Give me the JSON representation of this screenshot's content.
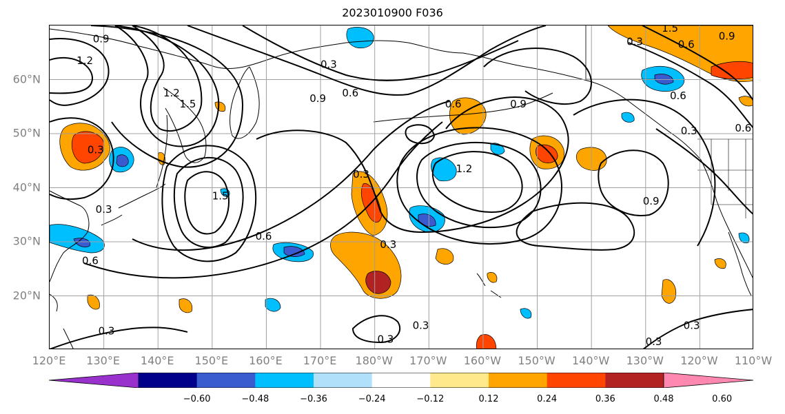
{
  "title": "2023010900 F036",
  "lat_labels": [
    {
      "lat": 60,
      "text": "60°N"
    },
    {
      "lat": 50,
      "text": "50°N"
    },
    {
      "lat": 40,
      "text": "40°N"
    },
    {
      "lat": 30,
      "text": "30°N"
    },
    {
      "lat": 20,
      "text": "20°N"
    }
  ],
  "lon_labels": [
    {
      "lon": 120,
      "text": "120°E"
    },
    {
      "lon": 130,
      "text": "130°E"
    },
    {
      "lon": 140,
      "text": "140°E"
    },
    {
      "lon": 150,
      "text": "150°E"
    },
    {
      "lon": 160,
      "text": "160°E"
    },
    {
      "lon": 170,
      "text": "170°E"
    },
    {
      "lon": 180,
      "text": "180°W"
    },
    {
      "lon": 190,
      "text": "170°W"
    },
    {
      "lon": 200,
      "text": "160°W"
    },
    {
      "lon": 210,
      "text": "150°W"
    },
    {
      "lon": 220,
      "text": "140°W"
    },
    {
      "lon": 230,
      "text": "130°W"
    },
    {
      "lon": 240,
      "text": "120°W"
    },
    {
      "lon": 250,
      "text": "110°W"
    }
  ],
  "extent": {
    "lon_min": 120,
    "lon_max": 250,
    "lat_min": 10,
    "lat_max": 70
  },
  "colorbar": {
    "colors": [
      "#9932cc",
      "#00008b",
      "#3a5bd0",
      "#00bfff",
      "#b0e0fa",
      "#ffffff",
      "#ffe98a",
      "#ffa500",
      "#ff4500",
      "#b22222",
      "#ff88b0"
    ],
    "ticks": [
      "−0.60",
      "−0.48",
      "−0.36",
      "−0.24",
      "−0.12",
      "0.12",
      "0.24",
      "0.36",
      "0.48",
      "0.60"
    ]
  },
  "contour_labels": [
    {
      "text": "0.9",
      "lon": 129.5,
      "lat": 67.5
    },
    {
      "text": "1.2",
      "lon": 126.5,
      "lat": 63.5
    },
    {
      "text": "1.5",
      "lon": 145.5,
      "lat": 55.5
    },
    {
      "text": "1.2",
      "lon": 142.5,
      "lat": 57.5
    },
    {
      "text": "0.3",
      "lon": 171.5,
      "lat": 62.8
    },
    {
      "text": "0.9",
      "lon": 169.5,
      "lat": 56.5
    },
    {
      "text": "0.6",
      "lon": 175.5,
      "lat": 57.5
    },
    {
      "text": "0.6",
      "lon": 194.5,
      "lat": 55.5
    },
    {
      "text": "0.9",
      "lon": 206.5,
      "lat": 55.5
    },
    {
      "text": "0.3",
      "lon": 128.5,
      "lat": 47.0
    },
    {
      "text": "0.3",
      "lon": 130.0,
      "lat": 36.0
    },
    {
      "text": "1.5",
      "lon": 151.5,
      "lat": 38.5
    },
    {
      "text": "0.3",
      "lon": 177.5,
      "lat": 42.5
    },
    {
      "text": "1.2",
      "lon": 196.5,
      "lat": 43.5
    },
    {
      "text": "0.6",
      "lon": 159.5,
      "lat": 31.0
    },
    {
      "text": "0.3",
      "lon": 182.5,
      "lat": 29.5
    },
    {
      "text": "0.6",
      "lon": 127.5,
      "lat": 26.5
    },
    {
      "text": "0.3",
      "lon": 130.5,
      "lat": 13.5
    },
    {
      "text": "0.3",
      "lon": 182.0,
      "lat": 12.0
    },
    {
      "text": "0.3",
      "lon": 188.5,
      "lat": 14.5
    },
    {
      "text": "0.3",
      "lon": 228.0,
      "lat": 67.0
    },
    {
      "text": "1.5",
      "lon": 234.5,
      "lat": 69.5
    },
    {
      "text": "0.6",
      "lon": 237.5,
      "lat": 66.5
    },
    {
      "text": "0.9",
      "lon": 245.0,
      "lat": 68.0
    },
    {
      "text": "0.6",
      "lon": 236.0,
      "lat": 57.0
    },
    {
      "text": "0.3",
      "lon": 238.0,
      "lat": 50.5
    },
    {
      "text": "0.6",
      "lon": 248.0,
      "lat": 51.0
    },
    {
      "text": "0.9",
      "lon": 231.0,
      "lat": 37.5
    },
    {
      "text": "0.3",
      "lon": 238.5,
      "lat": 14.5
    },
    {
      "text": "0.3",
      "lon": 231.5,
      "lat": 11.5
    }
  ]
}
